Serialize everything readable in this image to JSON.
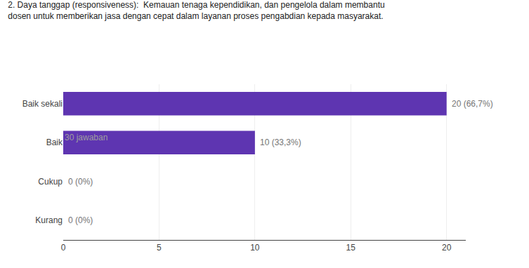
{
  "chart_data": {
    "type": "bar",
    "orientation": "horizontal",
    "title": "2. Daya tanggap (responsiveness):  Kemauan tenaga kependidikan, dan pengelola dalam membantu\ndosen untuk memberikan jasa dengan cepat dalam layanan proses pengabdian kepada masyarakat.",
    "subtitle": "30 jawaban",
    "categories": [
      "Baik sekali",
      "Baik",
      "Cukup",
      "Kurang"
    ],
    "values": [
      20,
      10,
      0,
      0
    ],
    "value_labels": [
      "20 (66,7%)",
      "10 (33,3%)",
      "0 (0%)",
      "0 (0%)"
    ],
    "data_labels": true,
    "color": "#5e35b1",
    "xlim": [
      0,
      21
    ],
    "xticks": [
      0,
      5,
      10,
      15,
      20
    ],
    "grid": true
  }
}
